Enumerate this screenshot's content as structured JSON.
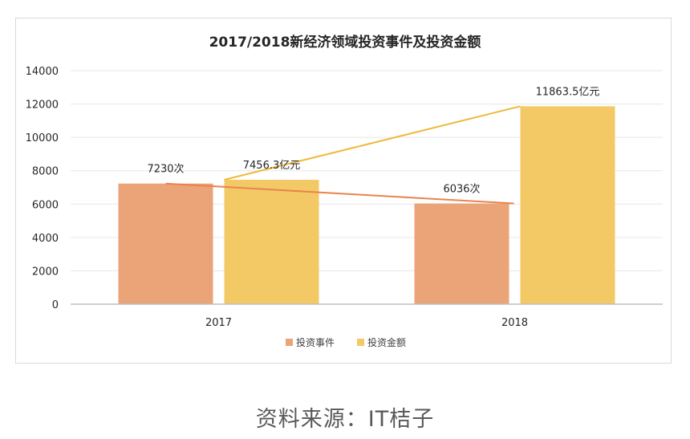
{
  "chart_data": {
    "type": "bar",
    "title": "2017/2018新经济领域投资事件及投资金额",
    "categories": [
      "2017",
      "2018"
    ],
    "series": [
      {
        "name": "投资事件",
        "values": [
          7230,
          6036
        ],
        "labels": [
          "7230次",
          "6036次"
        ],
        "color": "#eba378"
      },
      {
        "name": "投资金额",
        "values": [
          7456.3,
          11863.5
        ],
        "labels": [
          "7456.3亿元",
          "11863.5亿元"
        ],
        "color": "#f3c966"
      }
    ],
    "trend_lines": [
      {
        "series": "投资事件",
        "color": "#e8834e"
      },
      {
        "series": "投资金额",
        "color": "#f0b93c"
      }
    ],
    "yticks": [
      "0",
      "2000",
      "4000",
      "6000",
      "8000",
      "10000",
      "12000",
      "14000"
    ],
    "ylim": [
      0,
      14000
    ],
    "grid": true,
    "legend_position": "bottom"
  },
  "source_text": "资料来源：IT桔子"
}
